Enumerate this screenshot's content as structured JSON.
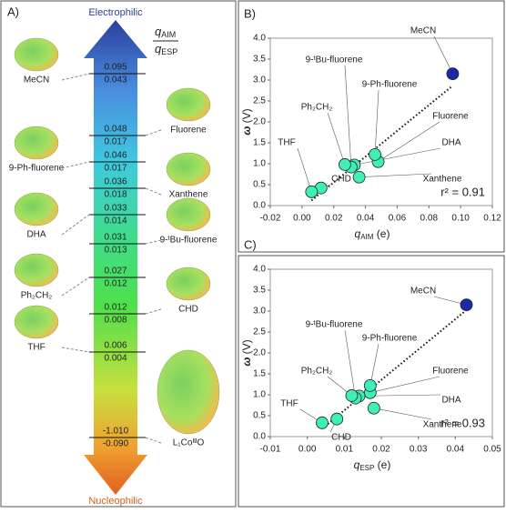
{
  "panel_a": {
    "label": "A)",
    "top": "Electrophilic",
    "bottom": "Nucleophilic",
    "header": [
      "q",
      "AIM",
      "q",
      "ESP"
    ],
    "pairs": [
      [
        "0.095",
        "0.043"
      ],
      [
        "0.048",
        "0.017"
      ],
      [
        "0.046",
        "0.017"
      ],
      [
        "0.036",
        "0.018"
      ],
      [
        "0.033",
        "0.014"
      ],
      [
        "0.031",
        "0.013"
      ],
      [
        "0.027",
        "0.012"
      ],
      [
        "0.012",
        "0.008"
      ],
      [
        "0.006",
        "0.004"
      ],
      [
        "-1.010",
        "-0.090"
      ]
    ],
    "molecules": [
      "MeCN",
      "Fluorene",
      "9-Ph-fluorene",
      "Xanthene",
      "DHA",
      "9-ᵗBu-fluorene",
      "Ph₂CH₂",
      "CHD",
      "THF",
      "L₁CoᴵᴵᴵO"
    ]
  },
  "chart_data": [
    {
      "type": "scatter",
      "label": "B)",
      "xlabel": [
        "q",
        "AIM",
        " (e)"
      ],
      "ylabel": [
        "ω",
        " (V)"
      ],
      "annotation": "r² = 0.91",
      "point_labels": [
        "MeCN",
        "Fluorene",
        "9-Ph-fluorene",
        "Xanthene",
        "DHA",
        "9-ᵗBu-fluorene",
        "Ph₂CH₂",
        "CHD",
        "THF"
      ],
      "colors": [
        "#1a2aa8",
        "#3ef0b8",
        "#3ef0b8",
        "#3ef0b8",
        "#3ef0b8",
        "#3ef0b8",
        "#3ef0b8",
        "#3ef0b8",
        "#3ef0b8"
      ],
      "x": [
        0.095,
        0.048,
        0.046,
        0.036,
        0.033,
        0.031,
        0.027,
        0.012,
        0.006
      ],
      "values": [
        3.15,
        1.05,
        1.22,
        0.68,
        0.97,
        0.92,
        0.98,
        0.42,
        0.33
      ],
      "xlim": [
        -0.02,
        0.12
      ],
      "xticks": [
        -0.02,
        {
          "value": 0,
          "label": "0.00"
        },
        0.02,
        0.04,
        0.06,
        0.08,
        {
          "value": 0.1,
          "label": "0.10"
        },
        0.12
      ],
      "ylim": [
        0,
        4
      ],
      "yticks": [
        {
          "value": 0,
          "label": "0.0"
        },
        {
          "value": 0.5,
          "label": "0.5"
        },
        {
          "value": 1,
          "label": "1.0"
        },
        {
          "value": 1.5,
          "label": "1.5"
        },
        {
          "value": 2,
          "label": "2.0"
        },
        {
          "value": 2.5,
          "label": "2.5"
        },
        {
          "value": 3,
          "label": "3.0"
        },
        {
          "value": 3.5,
          "label": "3.5"
        },
        {
          "value": 4,
          "label": "4.0"
        }
      ]
    },
    {
      "type": "scatter",
      "label": "C)",
      "xlabel": [
        "q",
        "ESP",
        " (e)"
      ],
      "ylabel": [
        "ω",
        " (V)"
      ],
      "annotation": "r² = 0.93",
      "point_labels": [
        "MeCN",
        "Fluorene",
        "9-Ph-fluorene",
        "Xanthene",
        "DHA",
        "9-ᵗBu-fluorene",
        "Ph₂CH₂",
        "CHD",
        "THF"
      ],
      "colors": [
        "#1a2aa8",
        "#3ef0b8",
        "#3ef0b8",
        "#3ef0b8",
        "#3ef0b8",
        "#3ef0b8",
        "#3ef0b8",
        "#3ef0b8",
        "#3ef0b8"
      ],
      "x": [
        0.043,
        0.017,
        0.017,
        0.018,
        0.014,
        0.013,
        0.012,
        0.008,
        0.004
      ],
      "values": [
        3.15,
        1.05,
        1.22,
        0.68,
        0.97,
        0.92,
        0.98,
        0.42,
        0.33
      ],
      "xlim": [
        -0.01,
        0.05
      ],
      "xticks": [
        -0.01,
        {
          "value": 0,
          "label": "0.00"
        },
        0.01,
        0.02,
        0.03,
        0.04,
        0.05
      ],
      "ylim": [
        0,
        4
      ],
      "yticks": [
        {
          "value": 0,
          "label": "0.0"
        },
        {
          "value": 0.5,
          "label": "0.5"
        },
        {
          "value": 1,
          "label": "1.0"
        },
        {
          "value": 1.5,
          "label": "1.5"
        },
        {
          "value": 2,
          "label": "2.0"
        },
        {
          "value": 2.5,
          "label": "2.5"
        },
        {
          "value": 3,
          "label": "3.0"
        },
        {
          "value": 3.5,
          "label": "3.5"
        },
        {
          "value": 4,
          "label": "4.0"
        }
      ]
    }
  ]
}
